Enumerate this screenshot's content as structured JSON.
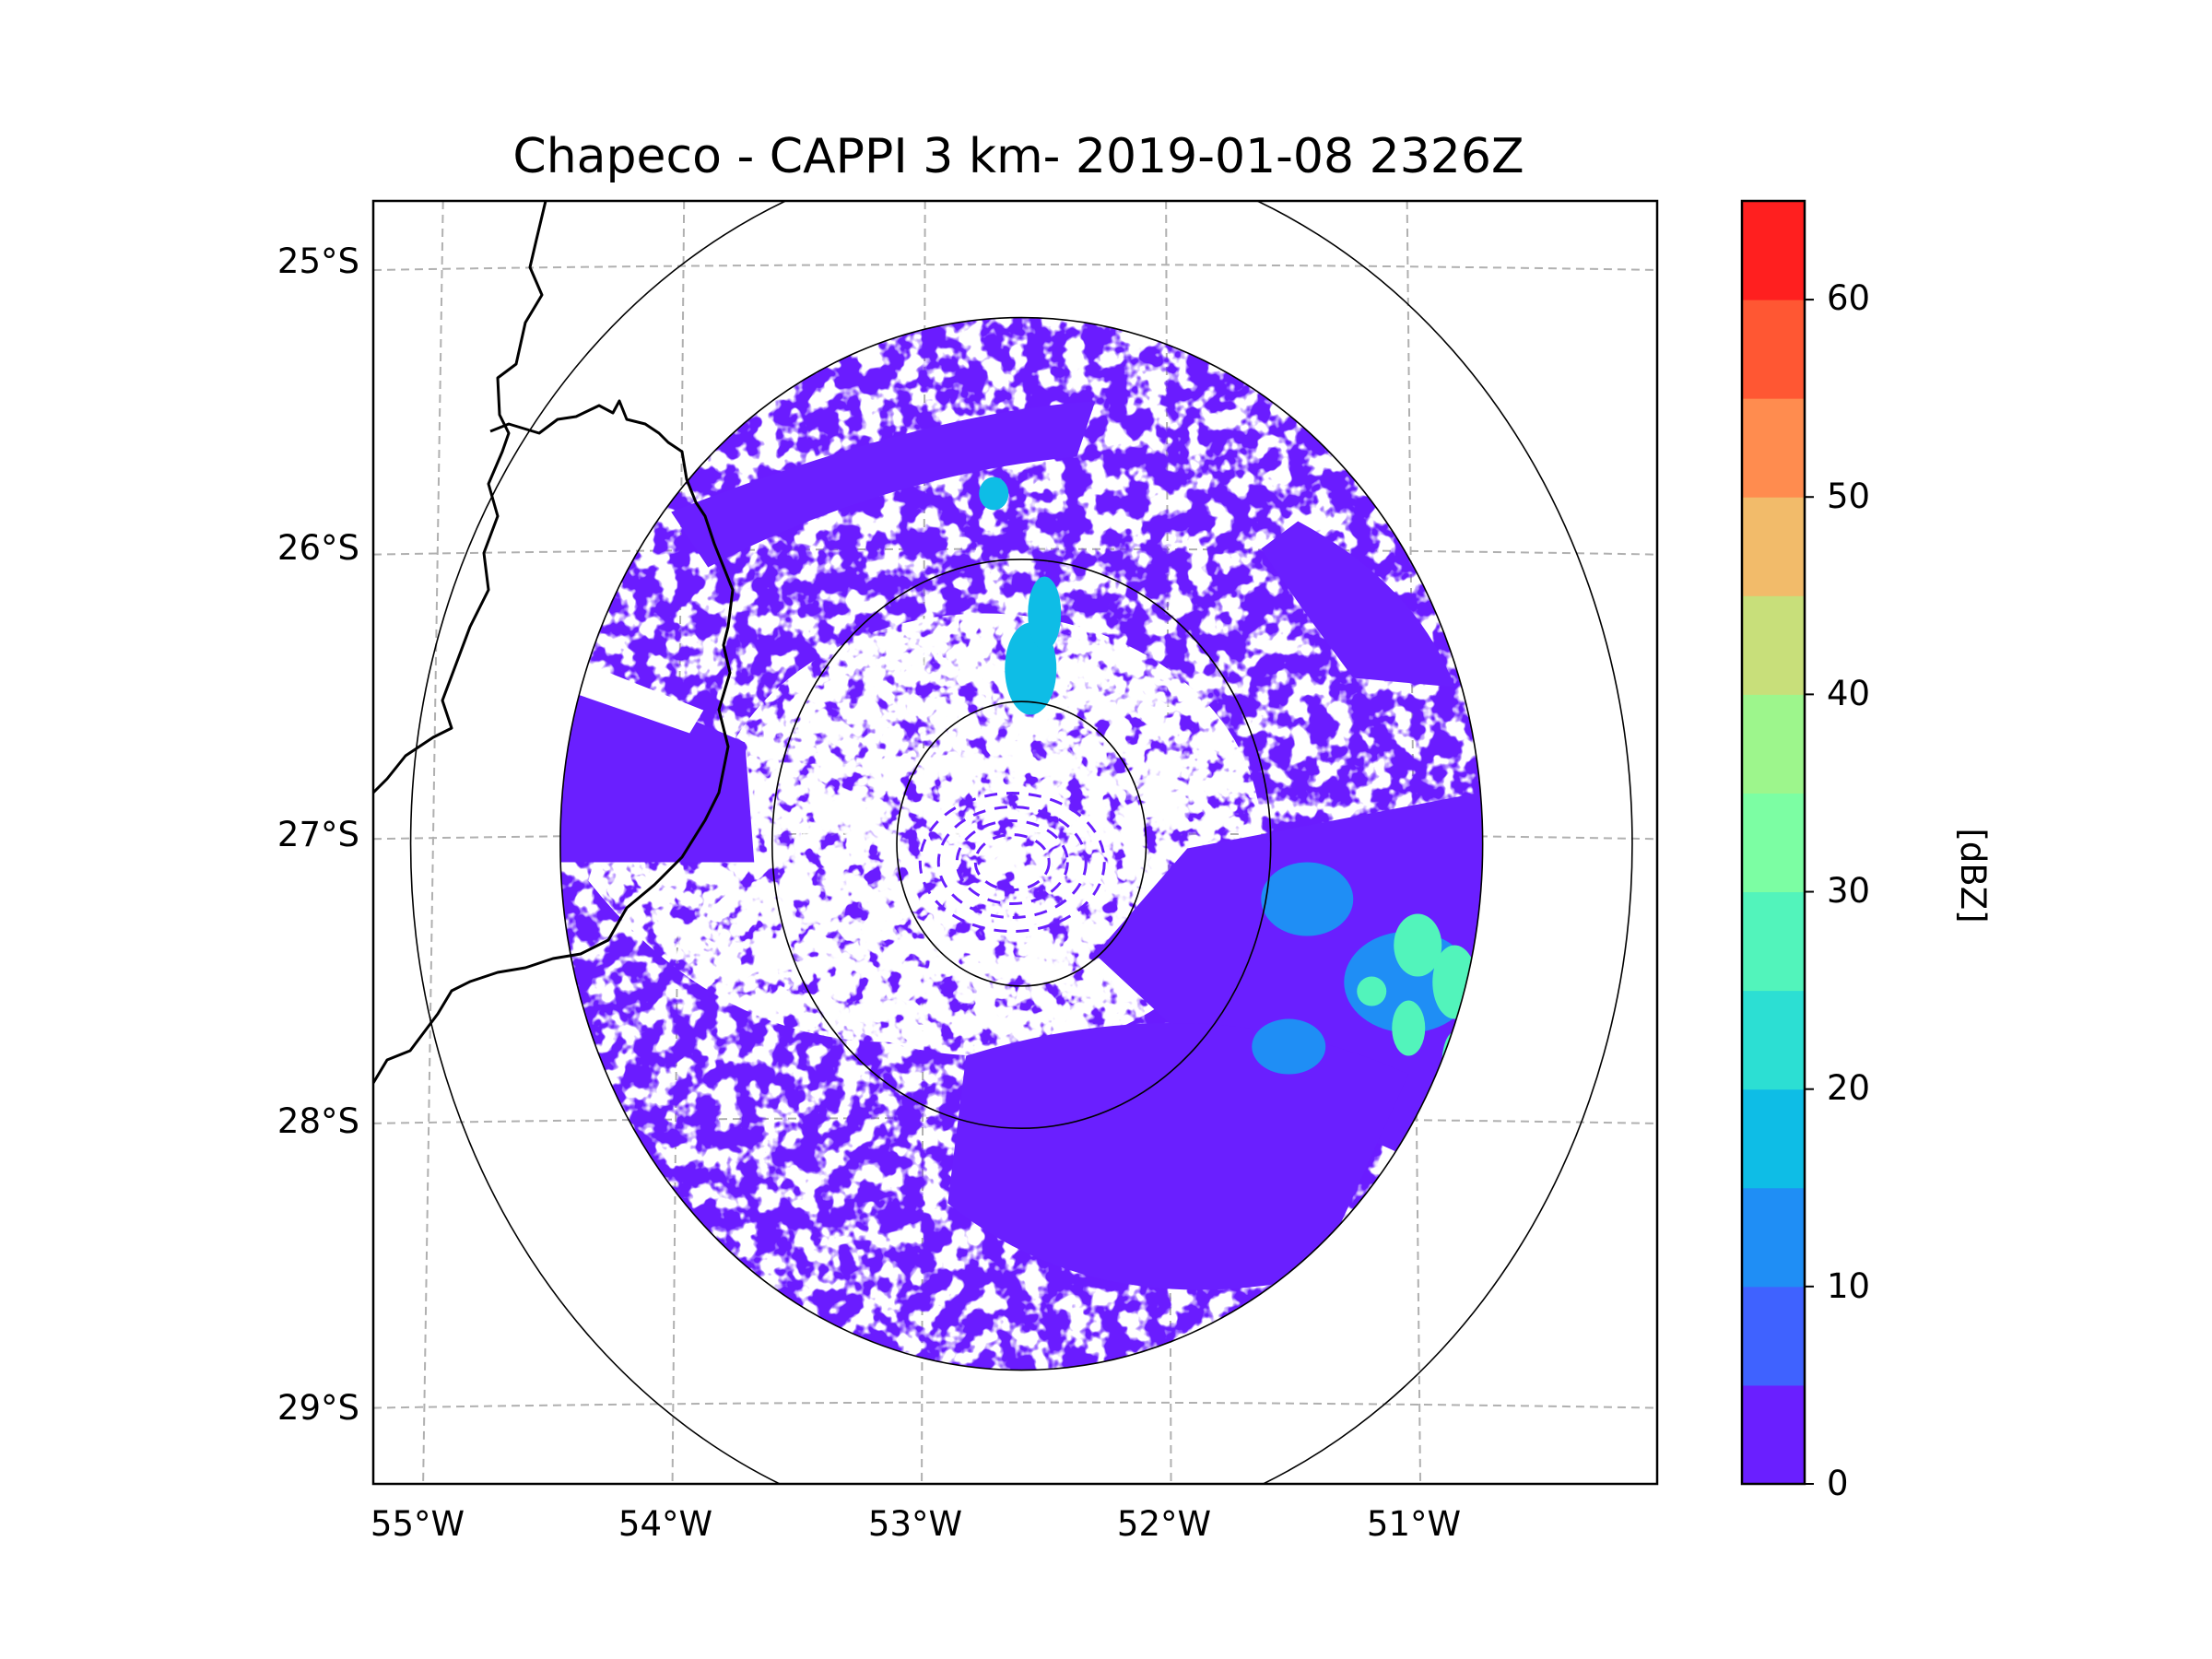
{
  "map": {
    "title": "Chapeco - CAPPI 3 km- 2019-01-08 2326Z",
    "station": "Chapeco",
    "product": "CAPPI 3 km",
    "datetime": "2019-01-08 2326Z",
    "lat_labels": [
      "25°S",
      "26°S",
      "27°S",
      "28°S",
      "29°S"
    ],
    "lon_labels": [
      "55°W",
      "54°W",
      "53°W",
      "52°W",
      "51°W"
    ],
    "extent": {
      "lon": [
        -55.2,
        -50.05
      ],
      "lat": [
        -29.28,
        -24.77
      ]
    },
    "radar_center": {
      "lon": -52.6,
      "lat": -27.03
    },
    "range_rings_deg": [
      0.5,
      1.0,
      1.85,
      2.45
    ],
    "data_coverage_deg": 1.85
  },
  "colorbar": {
    "label": "[dBZ]",
    "ticks": [
      "0",
      "10",
      "20",
      "30",
      "40",
      "50",
      "60"
    ],
    "min": 0,
    "max": 65,
    "step": 5,
    "colors": [
      "#6a1fff",
      "#3f62ff",
      "#1f8ef5",
      "#0ebde6",
      "#2cdfd3",
      "#52f4bb",
      "#7cfea3",
      "#9df68c",
      "#c8df7a",
      "#f2bb6a",
      "#ff8c4f",
      "#ff5733",
      "#ff1f1f"
    ]
  },
  "reflectivity_regions": [
    {
      "name": "northern-arc-band",
      "dbz": 2
    },
    {
      "name": "western-band",
      "dbz": 2
    },
    {
      "name": "southeast-mass",
      "dbz": 3
    },
    {
      "name": "eastern-band",
      "dbz": 3
    },
    {
      "name": "northeast-sector",
      "dbz": 2
    },
    {
      "name": "north-cell",
      "dbz": 18
    },
    {
      "name": "east-moderate-cells",
      "dbz": 12
    },
    {
      "name": "east-strong-cells",
      "dbz": 28
    }
  ]
}
